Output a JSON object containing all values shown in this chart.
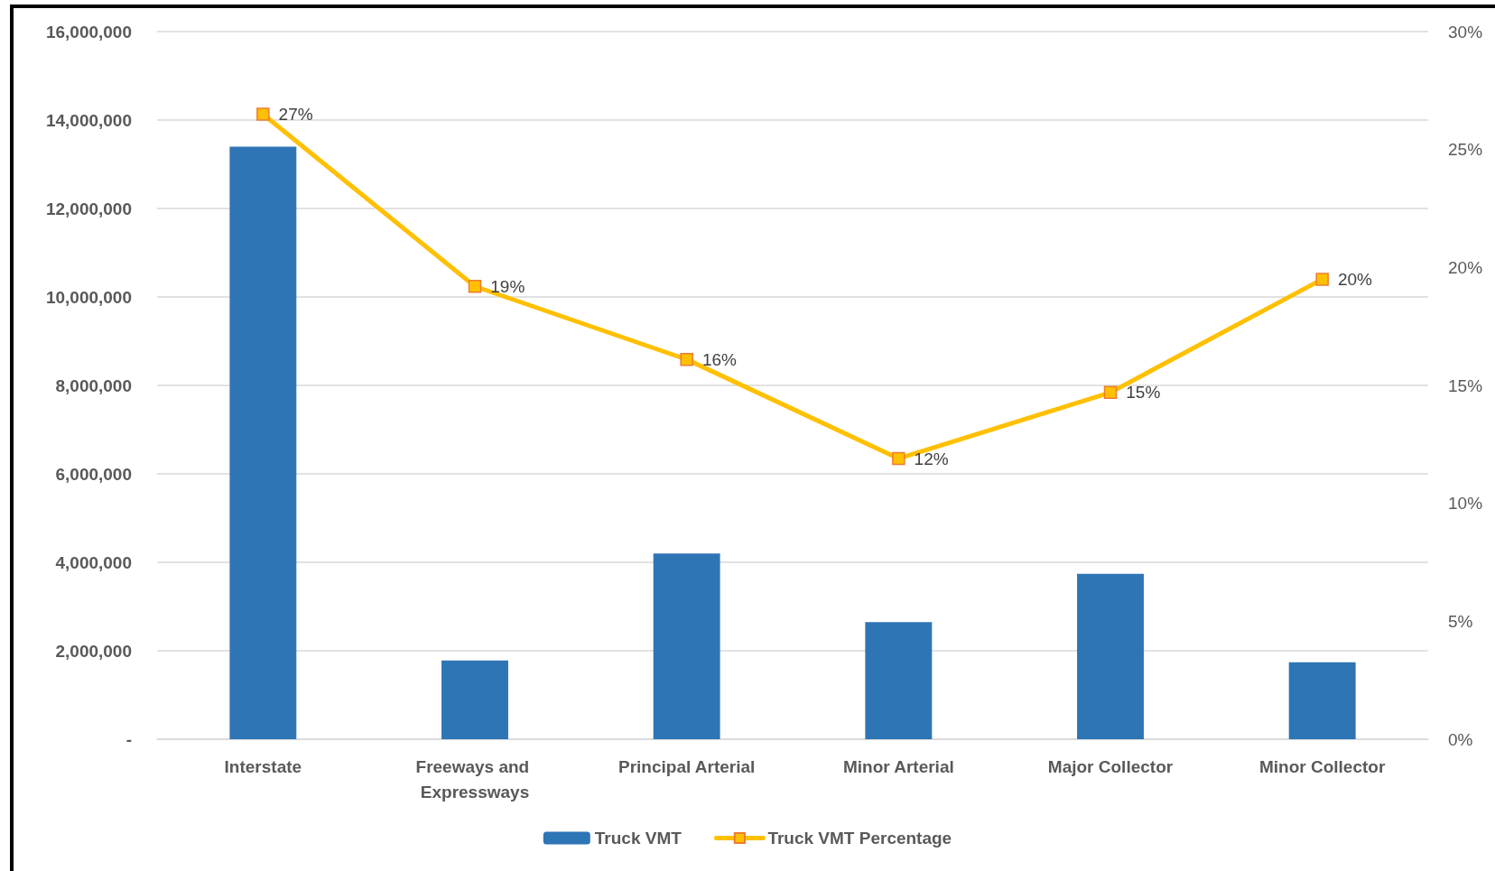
{
  "chart_data": {
    "type": "bar",
    "categories": [
      "Interstate",
      "Freeways and Expressways",
      "Principal Arterial",
      "Minor Arterial",
      "Major Collector",
      "Minor Collector"
    ],
    "series": [
      {
        "name": "Truck VMT",
        "color": "#2e75b6",
        "values": [
          13400000,
          1780000,
          4200000,
          2650000,
          3740000,
          1740000
        ]
      },
      {
        "name": "Truck VMT Percentage",
        "type": "line",
        "axis": "y2",
        "color": "#ffc000",
        "values": [
          26.5,
          19.2,
          16.1,
          11.9,
          14.7,
          19.5
        ],
        "value_labels": [
          "27%",
          "19%",
          "16%",
          "12%",
          "15%",
          "20%"
        ]
      }
    ],
    "ylim": [
      0,
      16000000
    ],
    "yticks": [
      {
        "value": 0,
        "label": "-"
      },
      {
        "value": 2000000,
        "label": "2,000,000"
      },
      {
        "value": 4000000,
        "label": "4,000,000"
      },
      {
        "value": 6000000,
        "label": "6,000,000"
      },
      {
        "value": 8000000,
        "label": "8,000,000"
      },
      {
        "value": 10000000,
        "label": "10,000,000"
      },
      {
        "value": 12000000,
        "label": "12,000,000"
      },
      {
        "value": 14000000,
        "label": "14,000,000"
      },
      {
        "value": 16000000,
        "label": "16,000,000"
      }
    ],
    "y2lim": [
      0,
      30
    ],
    "y2ticks": [
      {
        "value": 0,
        "label": "0%"
      },
      {
        "value": 5,
        "label": "5%"
      },
      {
        "value": 10,
        "label": "10%"
      },
      {
        "value": 15,
        "label": "15%"
      },
      {
        "value": 20,
        "label": "20%"
      },
      {
        "value": 25,
        "label": "25%"
      },
      {
        "value": 30,
        "label": "30%"
      }
    ],
    "grid": "y",
    "legend": "bottom",
    "marker": "square"
  }
}
